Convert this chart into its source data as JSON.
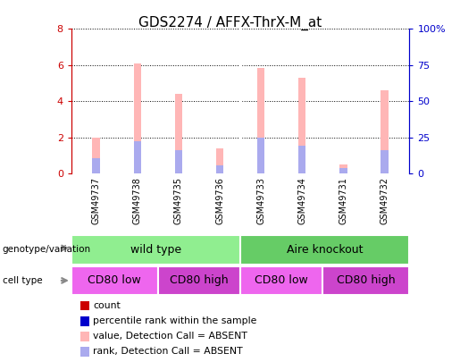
{
  "title": "GDS2274 / AFFX-ThrX-M_at",
  "samples": [
    "GSM49737",
    "GSM49738",
    "GSM49735",
    "GSM49736",
    "GSM49733",
    "GSM49734",
    "GSM49731",
    "GSM49732"
  ],
  "pink_bar_heights": [
    2.0,
    6.1,
    4.4,
    1.4,
    5.85,
    5.3,
    0.5,
    4.6
  ],
  "blue_bar_heights": [
    0.85,
    1.8,
    1.3,
    0.45,
    2.0,
    1.55,
    0.3,
    1.3
  ],
  "ylim_left": [
    0,
    8
  ],
  "ylim_right": [
    0,
    100
  ],
  "yticks_left": [
    0,
    2,
    4,
    6,
    8
  ],
  "yticks_right": [
    0,
    25,
    50,
    75,
    100
  ],
  "ytick_labels_right": [
    "0",
    "25",
    "50",
    "75",
    "100%"
  ],
  "pink_color": "#FFB6B6",
  "blue_color": "#AAAAEE",
  "left_axis_color": "#CC0000",
  "right_axis_color": "#0000CC",
  "bar_width": 0.18,
  "genotype_wt_color": "#90EE90",
  "genotype_ko_color": "#66CC66",
  "cell_low_color": "#EE66EE",
  "cell_high_color": "#CC44CC",
  "legend_items": [
    {
      "label": "count",
      "color": "#CC0000"
    },
    {
      "label": "percentile rank within the sample",
      "color": "#0000CC"
    },
    {
      "label": "value, Detection Call = ABSENT",
      "color": "#FFB6B6"
    },
    {
      "label": "rank, Detection Call = ABSENT",
      "color": "#AAAAEE"
    }
  ],
  "plot_bg_color": "#ffffff",
  "sample_row_bg": "#D0D0D0",
  "fig_bg": "#ffffff"
}
